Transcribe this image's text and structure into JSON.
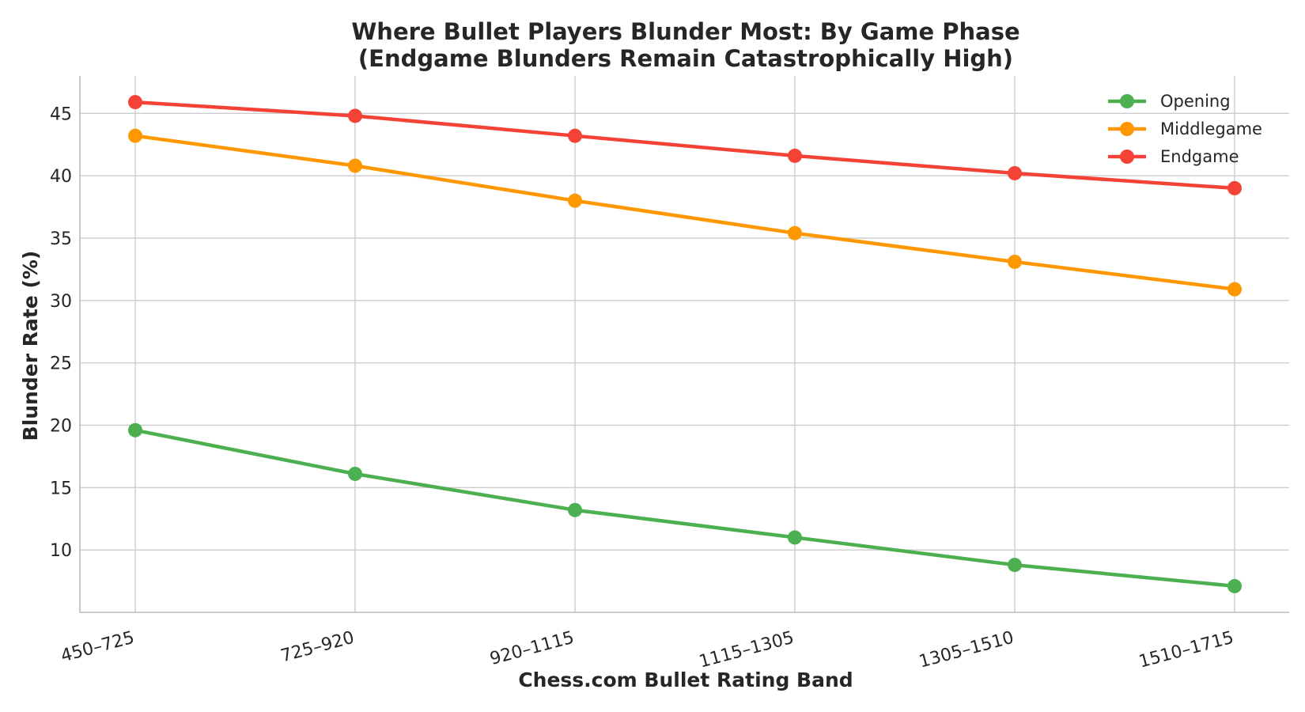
{
  "chart_data": {
    "type": "line",
    "title": "Where Bullet Players Blunder Most: By Game Phase",
    "subtitle": "(Endgame Blunders Remain Catastrophically High)",
    "xlabel": "Chess.com Bullet Rating Band",
    "ylabel": "Blunder Rate (%)",
    "categories": [
      "450–725",
      "725–920",
      "920–1115",
      "1115–1305",
      "1305–1510",
      "1510–1715"
    ],
    "ylim": [
      5,
      48
    ],
    "yticks": [
      10,
      15,
      20,
      25,
      30,
      35,
      40,
      45
    ],
    "grid": true,
    "legend_position": "top-right",
    "series": [
      {
        "name": "Opening",
        "color": "#4caf50",
        "values": [
          19.6,
          16.1,
          13.2,
          11.0,
          8.8,
          7.1
        ]
      },
      {
        "name": "Middlegame",
        "color": "#ff9800",
        "values": [
          43.2,
          40.8,
          38.0,
          35.4,
          33.1,
          30.9
        ]
      },
      {
        "name": "Endgame",
        "color": "#f44336",
        "values": [
          45.9,
          44.8,
          43.2,
          41.6,
          40.2,
          39.0
        ]
      }
    ]
  }
}
